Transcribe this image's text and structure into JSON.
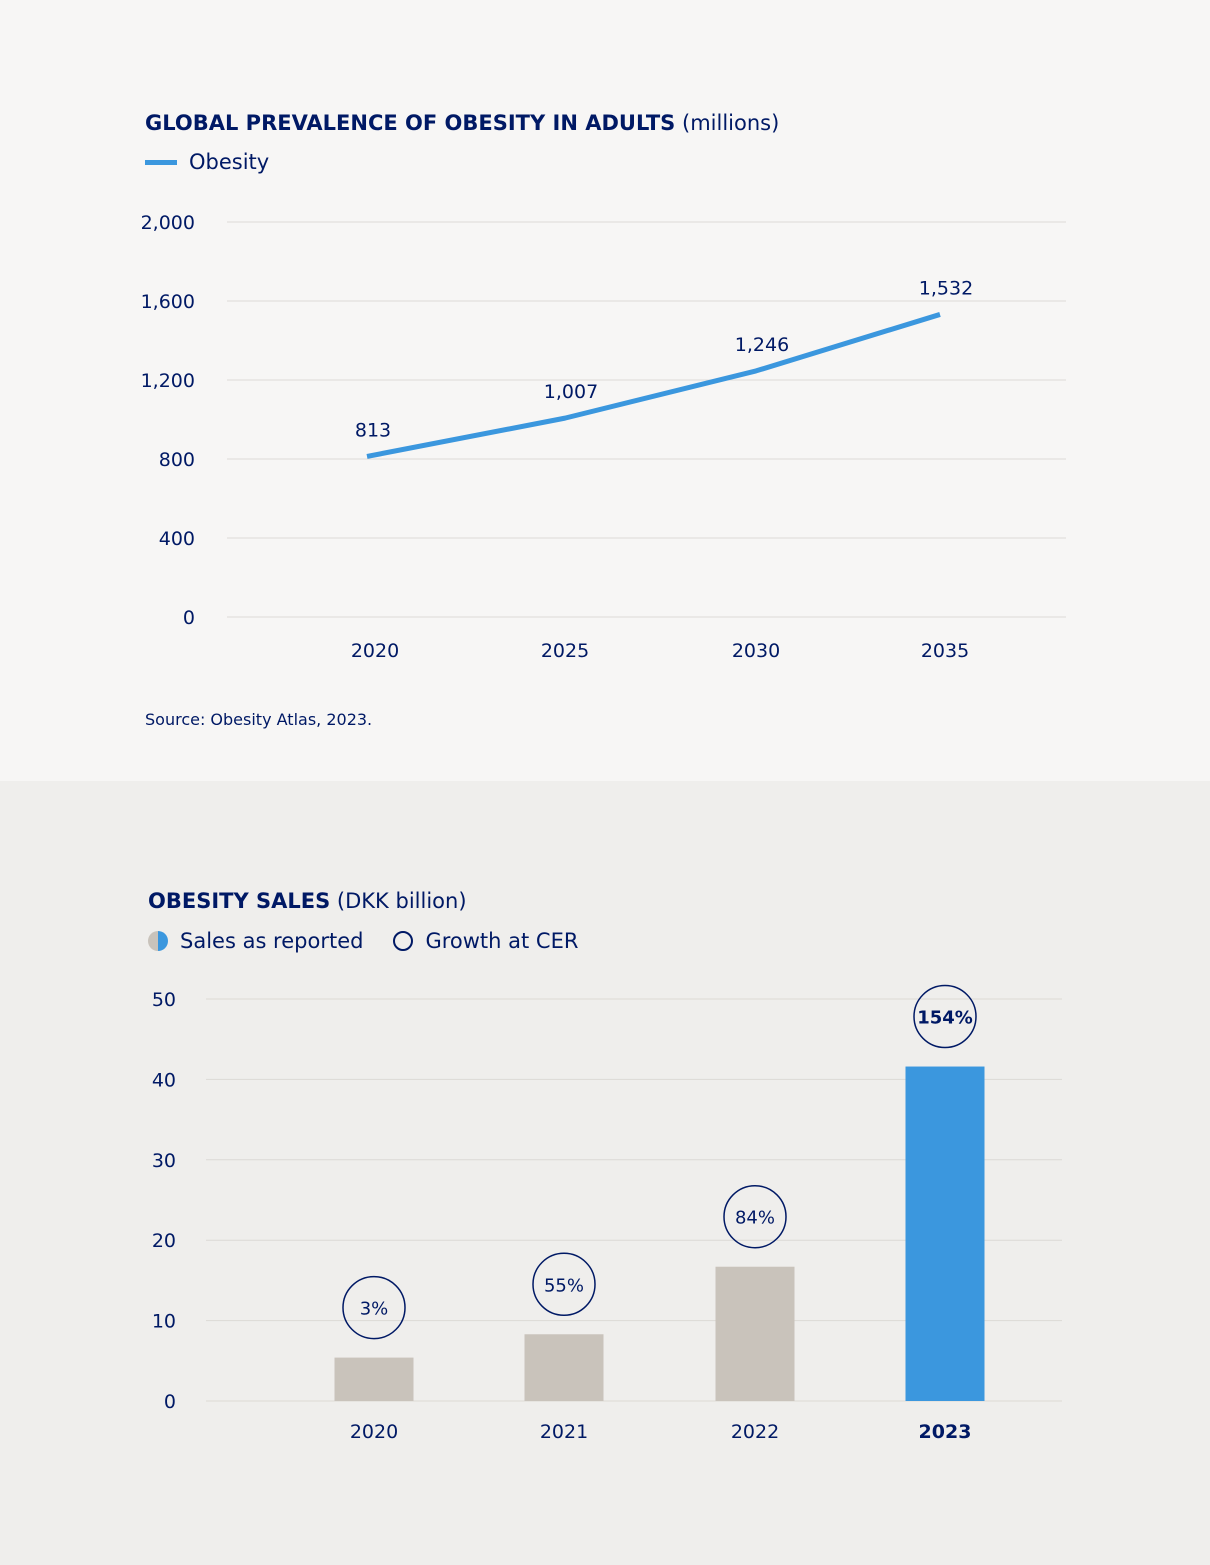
{
  "chart_data": [
    {
      "type": "line",
      "title": "GLOBAL PREVALENCE OF OBESITY IN ADULTS",
      "title_unit": "(millions)",
      "legend": [
        "Obesity"
      ],
      "x": [
        "2020",
        "2025",
        "2030",
        "2035"
      ],
      "series": [
        {
          "name": "Obesity",
          "values": [
            813,
            1007,
            1246,
            1532
          ],
          "labels": [
            "813",
            "1,007",
            "1,246",
            "1,532"
          ],
          "color": "#3b97de"
        }
      ],
      "yticks": [
        "0",
        "400",
        "800",
        "1,200",
        "1,600",
        "2,000"
      ],
      "ylim": [
        0,
        2000
      ],
      "grid": true,
      "legend_position": "top-left",
      "source": "Source: Obesity Atlas, 2023."
    },
    {
      "type": "bar",
      "title": "OBESITY SALES",
      "title_unit": "(DKK billion)",
      "legend": [
        "Sales as reported",
        "Growth at CER"
      ],
      "categories": [
        "2020",
        "2021",
        "2022",
        "2023"
      ],
      "series": [
        {
          "name": "Sales as reported",
          "values": [
            5.4,
            8.3,
            16.7,
            41.6
          ]
        },
        {
          "name": "Growth at CER",
          "labels": [
            "3%",
            "55%",
            "84%",
            "154%"
          ]
        }
      ],
      "yticks": [
        "0",
        "10",
        "20",
        "30",
        "40",
        "50"
      ],
      "ylim": [
        0,
        50
      ],
      "grid": true,
      "highlight_category": "2023",
      "colors": {
        "bar": "#c9c3bb",
        "highlight": "#3b97de",
        "text": "#001965"
      },
      "legend_position": "top-left"
    }
  ]
}
